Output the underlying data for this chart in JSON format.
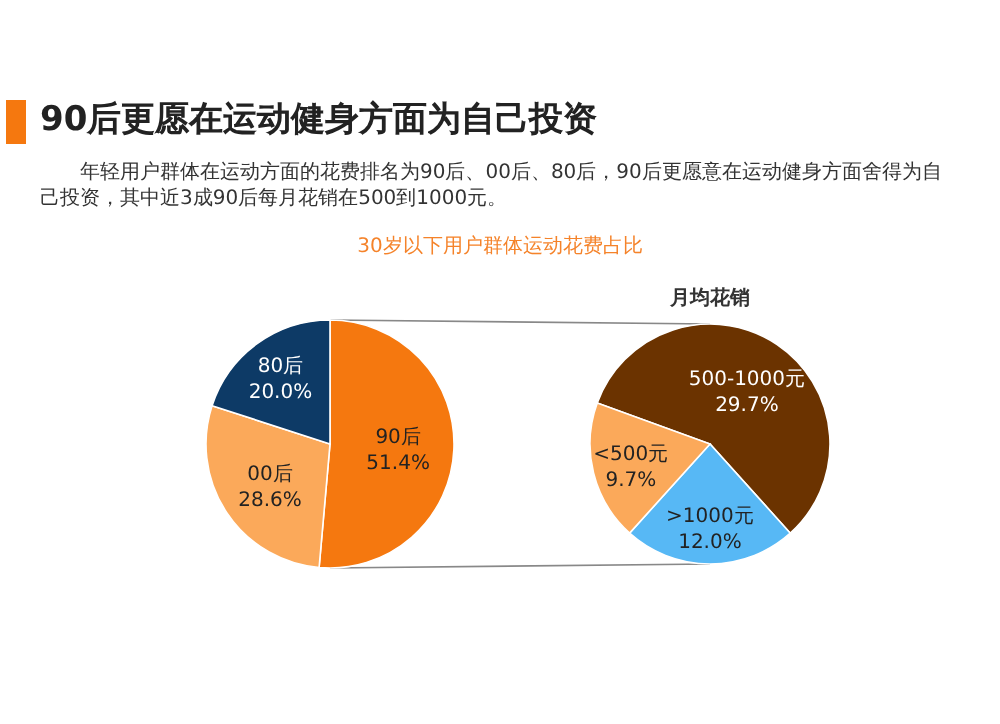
{
  "chart_data": [
    {
      "type": "pie",
      "title": "90后更愿在运动健身方面为自己投资",
      "subtitle": "30岁以下用户群体运动花费占比",
      "annotations": [
        "年轻用户群体在运动方面的花费排名为90后、00后、80后，90后更愿意在运动健身方面舍得为自己投资，其中近3成90后每月花销在500到1000元。"
      ],
      "categories": [
        "90后",
        "00后",
        "80后"
      ],
      "values": [
        51.4,
        28.6,
        20.0
      ],
      "value_labels": [
        "51.4%",
        "28.6%",
        "20.0%"
      ],
      "colors": [
        "#f5780f",
        "#fba95a",
        "#0d3a66"
      ]
    },
    {
      "type": "pie",
      "title": "月均花销",
      "categories": [
        "500-1000元",
        ">1000元",
        "<500元"
      ],
      "values": [
        29.7,
        12.0,
        9.7
      ],
      "value_labels": [
        "29.7%",
        "12.0%",
        "9.7%"
      ],
      "colors": [
        "#6b3300",
        "#57b8f5",
        "#fba95a"
      ]
    }
  ]
}
